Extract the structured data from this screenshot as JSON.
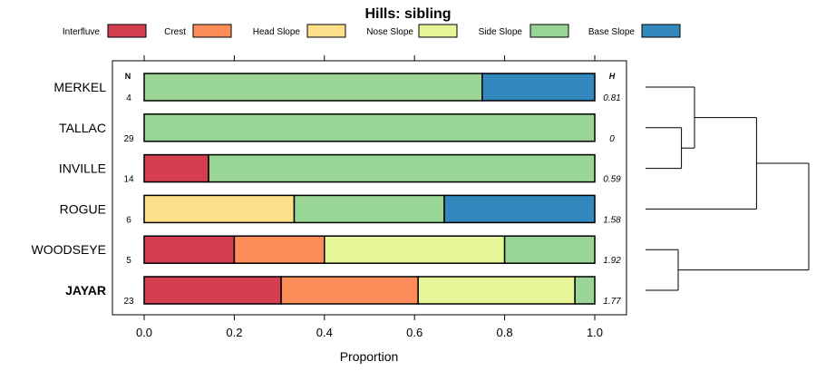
{
  "chart_data": {
    "type": "bar",
    "stacked": true,
    "orientation": "horizontal",
    "title": "Hills: sibling",
    "xlabel": "Proportion",
    "ylabel": "",
    "xlim": [
      0,
      1
    ],
    "xticks": [
      "0.0",
      "0.2",
      "0.4",
      "0.6",
      "0.8",
      "1.0"
    ],
    "xtick_values": [
      0,
      0.2,
      0.4,
      0.6,
      0.8,
      1.0
    ],
    "n_header": "N",
    "h_header": "H",
    "legend_position": "top",
    "legend": [
      {
        "name": "Interfluve",
        "color": "#d53e4f"
      },
      {
        "name": "Crest",
        "color": "#fc8d59"
      },
      {
        "name": "Head Slope",
        "color": "#fee08b"
      },
      {
        "name": "Nose Slope",
        "color": "#e6f598"
      },
      {
        "name": "Side Slope",
        "color": "#99d594"
      },
      {
        "name": "Base Slope",
        "color": "#3288bd"
      }
    ],
    "categories": [
      "MERKEL",
      "TALLAC",
      "INVILLE",
      "ROGUE",
      "WOODSEYE",
      "JAYAR"
    ],
    "highlight": "JAYAR",
    "n": [
      "4",
      "29",
      "14",
      "6",
      "5",
      "23"
    ],
    "h": [
      "0.81",
      "0",
      "0.59",
      "1.58",
      "1.92",
      "1.77"
    ],
    "series": [
      {
        "name": "Interfluve",
        "values": [
          0,
          0,
          0.143,
          0,
          0.2,
          0.304
        ]
      },
      {
        "name": "Crest",
        "values": [
          0,
          0,
          0,
          0,
          0.2,
          0.304
        ]
      },
      {
        "name": "Head Slope",
        "values": [
          0,
          0,
          0,
          0.333,
          0,
          0
        ]
      },
      {
        "name": "Nose Slope",
        "values": [
          0,
          0,
          0,
          0,
          0.4,
          0.348
        ]
      },
      {
        "name": "Side Slope",
        "values": [
          0.75,
          1.0,
          0.857,
          0.333,
          0.2,
          0.044
        ]
      },
      {
        "name": "Base Slope",
        "values": [
          0.25,
          0,
          0,
          0.334,
          0,
          0
        ]
      }
    ],
    "dendrogram": {
      "leaf_order": [
        "MERKEL",
        "TALLAC",
        "INVILLE",
        "ROGUE",
        "WOODSEYE",
        "JAYAR"
      ],
      "merges": [
        {
          "a": "TALLAC",
          "b": "INVILLE",
          "height": 0.22
        },
        {
          "a": "MERKEL",
          "b": "TALLAC+INVILLE",
          "height": 0.3
        },
        {
          "a": "MERKEL+TALLAC+INVILLE",
          "b": "ROGUE",
          "height": 0.68
        },
        {
          "a": "WOODSEYE",
          "b": "JAYAR",
          "height": 0.2
        },
        {
          "a": "MERKEL+TALLAC+INVILLE+ROGUE",
          "b": "WOODSEYE+JAYAR",
          "height": 1.0
        }
      ]
    }
  }
}
